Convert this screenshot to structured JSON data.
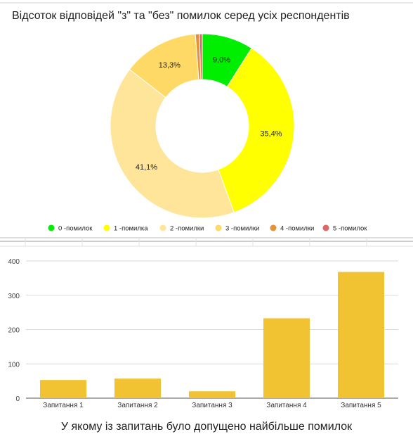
{
  "chart_data": [
    {
      "type": "pie",
      "donut": true,
      "title": "Відсоток відповідей \"з\" та \"без\" помилок серед усіх респондентів",
      "legend_position": "bottom",
      "slices": [
        {
          "label": "0 -помилок",
          "value": 9.0,
          "display": "9,0%",
          "color": "#00ee00"
        },
        {
          "label": "1 -помилка",
          "value": 35.4,
          "display": "35,4%",
          "color": "#ffff00"
        },
        {
          "label": "2 -помилки",
          "value": 41.1,
          "display": "41,1%",
          "color": "#ffe599"
        },
        {
          "label": "3 -помилки",
          "value": 13.3,
          "display": "13,3%",
          "color": "#ffd966"
        },
        {
          "label": "4 -помилки",
          "value": 0.7,
          "display": "",
          "color": "#e69138"
        },
        {
          "label": "5 -помилок",
          "value": 0.5,
          "display": "",
          "color": "#e06666"
        }
      ]
    },
    {
      "type": "bar",
      "title": "У якому із запитань було допущено найбільше помилок",
      "categories": [
        "Запитання 1",
        "Запитання 2",
        "Запитання 3",
        "Запитання 4",
        "Запитання 5"
      ],
      "values": [
        53,
        57,
        20,
        233,
        368
      ],
      "ylim": [
        0,
        400
      ],
      "yticks": [
        "0",
        "100",
        "200",
        "300",
        "400"
      ],
      "grid": true,
      "bar_color": "#f1c232"
    }
  ]
}
